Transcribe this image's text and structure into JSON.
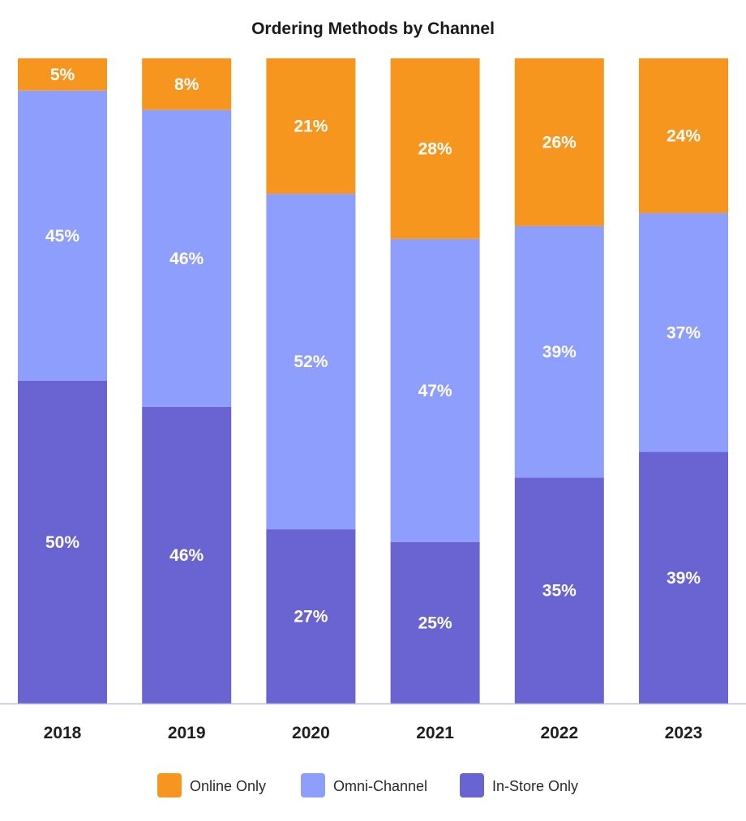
{
  "chart_data": {
    "type": "bar",
    "stacked": true,
    "title": "Ordering Methods by Channel",
    "xlabel": "",
    "ylabel": "",
    "ylim": [
      0,
      100
    ],
    "grid": false,
    "legend_position": "bottom",
    "categories": [
      "2018",
      "2019",
      "2020",
      "2021",
      "2022",
      "2023"
    ],
    "series": [
      {
        "name": "In-Store Only",
        "color": "#6964d1",
        "values": [
          50,
          46,
          27,
          25,
          35,
          39
        ],
        "labels": [
          "50%",
          "46%",
          "27%",
          "25%",
          "35%",
          "39%"
        ]
      },
      {
        "name": "Omni-Channel",
        "color": "#8d9efd",
        "values": [
          45,
          46,
          52,
          47,
          39,
          37
        ],
        "labels": [
          "45%",
          "46%",
          "52%",
          "47%",
          "39%",
          "37%"
        ]
      },
      {
        "name": "Online Only",
        "color": "#f7961e",
        "values": [
          5,
          8,
          21,
          28,
          26,
          24
        ],
        "labels": [
          "5%",
          "8%",
          "21%",
          "28%",
          "26%",
          "24%"
        ]
      }
    ],
    "legend_order": [
      "Online Only",
      "Omni-Channel",
      "In-Store Only"
    ],
    "axis_color": "#b9c0df"
  }
}
